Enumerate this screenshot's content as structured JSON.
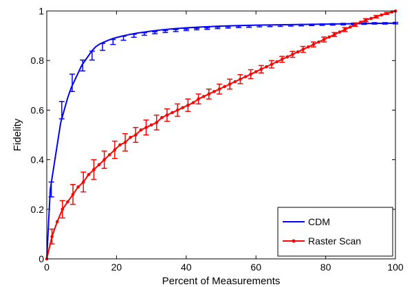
{
  "chart_data": {
    "type": "line",
    "title": "",
    "xlabel": "Percent of Measurements",
    "ylabel": "Fidelity",
    "xlim": [
      0,
      100
    ],
    "ylim": [
      0,
      1
    ],
    "xticks": [
      0,
      20,
      40,
      60,
      80,
      100
    ],
    "yticks": [
      0,
      0.2,
      0.4,
      0.6,
      0.8,
      1
    ],
    "ytick_labels": [
      "0",
      "0.2",
      "0.4",
      "0.6",
      "0.8",
      "1"
    ],
    "grid": false,
    "legend_position": "bottom-right",
    "series": [
      {
        "name": "CDM",
        "color": "#0000ff",
        "marker": "none",
        "x": [
          0,
          1,
          2,
          3,
          4,
          5,
          6,
          7,
          8,
          9,
          10,
          11,
          12,
          13,
          14,
          15,
          16,
          17,
          18,
          19,
          20,
          22,
          24,
          26,
          28,
          30,
          33,
          36,
          40,
          45,
          50,
          55,
          60,
          65,
          70,
          75,
          80,
          85,
          90,
          95,
          100
        ],
        "y": [
          0.0,
          0.28,
          0.37,
          0.46,
          0.55,
          0.6,
          0.65,
          0.69,
          0.72,
          0.75,
          0.78,
          0.8,
          0.82,
          0.84,
          0.855,
          0.865,
          0.872,
          0.878,
          0.884,
          0.889,
          0.893,
          0.9,
          0.906,
          0.911,
          0.915,
          0.919,
          0.924,
          0.928,
          0.932,
          0.936,
          0.939,
          0.941,
          0.943,
          0.944,
          0.945,
          0.946,
          0.947,
          0.948,
          0.949,
          0.95,
          0.951
        ],
        "error_x": [
          1.3,
          4.3,
          7.3,
          10.3,
          13,
          16,
          19,
          22,
          25,
          28,
          31,
          34,
          37,
          40,
          43,
          46,
          49,
          52,
          55,
          58,
          61,
          64,
          67,
          70,
          73,
          76,
          79,
          82,
          85,
          88,
          91,
          94,
          97,
          100
        ],
        "error_y": [
          0.28,
          0.6,
          0.71,
          0.78,
          0.82,
          0.855,
          0.875,
          0.89,
          0.9,
          0.907,
          0.912,
          0.917,
          0.921,
          0.924,
          0.927,
          0.929,
          0.932,
          0.934,
          0.936,
          0.937,
          0.939,
          0.94,
          0.941,
          0.942,
          0.943,
          0.944,
          0.945,
          0.946,
          0.947,
          0.948,
          0.949,
          0.95,
          0.95,
          0.951
        ],
        "error_half": [
          0.03,
          0.035,
          0.035,
          0.022,
          0.018,
          0.014,
          0.01,
          0.008,
          0.006,
          0.005,
          0.004,
          0.004,
          0.004,
          0.003,
          0.003,
          0.003,
          0.003,
          0.003,
          0.003,
          0.003,
          0.003,
          0.003,
          0.003,
          0.003,
          0.003,
          0.003,
          0.003,
          0.003,
          0.003,
          0.003,
          0.003,
          0.003,
          0.003,
          0.003
        ]
      },
      {
        "name": "Raster Scan",
        "color": "#ff0000",
        "marker": "dot",
        "x": [
          0,
          1.5,
          3,
          4.5,
          6,
          7.5,
          9,
          10.5,
          12,
          13.5,
          15,
          16.5,
          18,
          19.5,
          21,
          22.5,
          24,
          25.5,
          27,
          28.5,
          30,
          31.5,
          33,
          34.5,
          36,
          37.5,
          39,
          40.5,
          42,
          43.5,
          45,
          46.5,
          48,
          49.5,
          51,
          52.5,
          54,
          55.5,
          57,
          58.5,
          60,
          61.5,
          63,
          64.5,
          66,
          67.5,
          69,
          70.5,
          72,
          73.5,
          75,
          76.5,
          78,
          79.5,
          81,
          82.5,
          84,
          85.5,
          87,
          88.5,
          90,
          91.5,
          93,
          94.5,
          96,
          97.5,
          99,
          100
        ],
        "y": [
          0.0,
          0.09,
          0.15,
          0.2,
          0.23,
          0.26,
          0.29,
          0.31,
          0.34,
          0.36,
          0.38,
          0.4,
          0.42,
          0.44,
          0.46,
          0.47,
          0.49,
          0.5,
          0.52,
          0.53,
          0.54,
          0.55,
          0.57,
          0.58,
          0.59,
          0.6,
          0.61,
          0.62,
          0.63,
          0.645,
          0.655,
          0.665,
          0.675,
          0.685,
          0.695,
          0.705,
          0.715,
          0.725,
          0.735,
          0.745,
          0.755,
          0.765,
          0.775,
          0.785,
          0.795,
          0.805,
          0.815,
          0.825,
          0.835,
          0.845,
          0.855,
          0.865,
          0.875,
          0.885,
          0.895,
          0.905,
          0.915,
          0.925,
          0.935,
          0.945,
          0.955,
          0.963,
          0.97,
          0.977,
          0.984,
          0.99,
          0.996,
          1.0
        ],
        "error_x": [
          1.5,
          4.5,
          7.5,
          10.5,
          13.5,
          16.5,
          19.5,
          22.5,
          25.5,
          28.5,
          31.5,
          34.5,
          37.5,
          40.5,
          43.5,
          46.5,
          49.5,
          52.5,
          55.5,
          58.5,
          61.5,
          64.5,
          67.5,
          70.5,
          73.5,
          76.5,
          79.5,
          82.5,
          85.5,
          88.5,
          91.5,
          94.5,
          97.5
        ],
        "error_y": [
          0.09,
          0.2,
          0.26,
          0.31,
          0.36,
          0.4,
          0.44,
          0.47,
          0.5,
          0.53,
          0.55,
          0.58,
          0.6,
          0.62,
          0.645,
          0.665,
          0.685,
          0.705,
          0.725,
          0.745,
          0.765,
          0.785,
          0.805,
          0.825,
          0.845,
          0.865,
          0.885,
          0.905,
          0.925,
          0.945,
          0.963,
          0.977,
          0.99
        ],
        "error_half": [
          0.03,
          0.035,
          0.04,
          0.04,
          0.04,
          0.035,
          0.035,
          0.035,
          0.03,
          0.03,
          0.03,
          0.025,
          0.025,
          0.025,
          0.02,
          0.02,
          0.02,
          0.02,
          0.018,
          0.018,
          0.015,
          0.015,
          0.012,
          0.012,
          0.012,
          0.01,
          0.01,
          0.008,
          0.008,
          0.007,
          0.006,
          0.005,
          0.004
        ]
      }
    ]
  }
}
